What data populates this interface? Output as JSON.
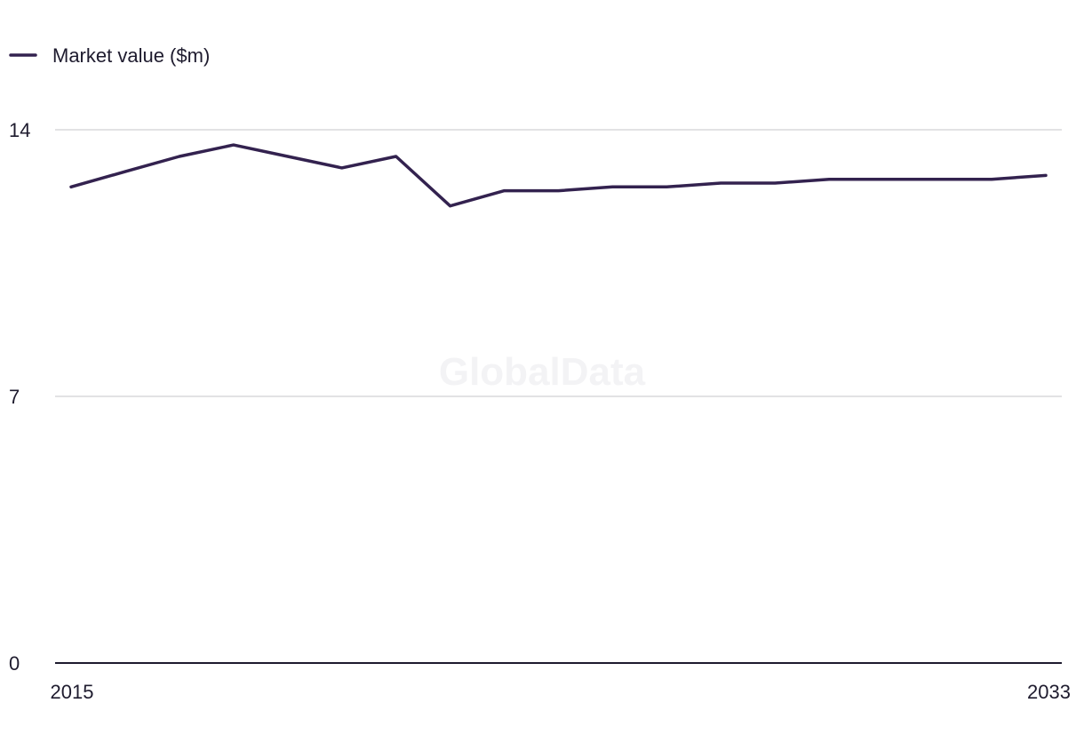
{
  "chart_data": {
    "type": "line",
    "title": "",
    "xlabel": "",
    "ylabel": "",
    "x": [
      2015,
      2016,
      2017,
      2018,
      2019,
      2020,
      2021,
      2022,
      2023,
      2024,
      2025,
      2026,
      2027,
      2028,
      2029,
      2030,
      2031,
      2032,
      2033
    ],
    "x_tick_labels": [
      "2015",
      "2033"
    ],
    "y_ticks": [
      0,
      7,
      14
    ],
    "y_tick_labels": [
      "0",
      "7",
      "14"
    ],
    "ylim": [
      0,
      14
    ],
    "grid": true,
    "legend": {
      "position": "top-left"
    },
    "series": [
      {
        "name": "Market value ($m)",
        "color": "#33224f",
        "values": [
          12.5,
          12.9,
          13.3,
          13.6,
          13.3,
          13.0,
          13.3,
          12.0,
          12.4,
          12.4,
          12.5,
          12.5,
          12.6,
          12.6,
          12.7,
          12.7,
          12.7,
          12.7,
          12.8
        ]
      }
    ],
    "watermark": "GlobalData"
  },
  "colors": {
    "series": "#33224f",
    "grid": "#d9d9dc",
    "axis": "#1e1b2e",
    "text": "#1e1b2e",
    "watermark": "#f3f3f5"
  }
}
